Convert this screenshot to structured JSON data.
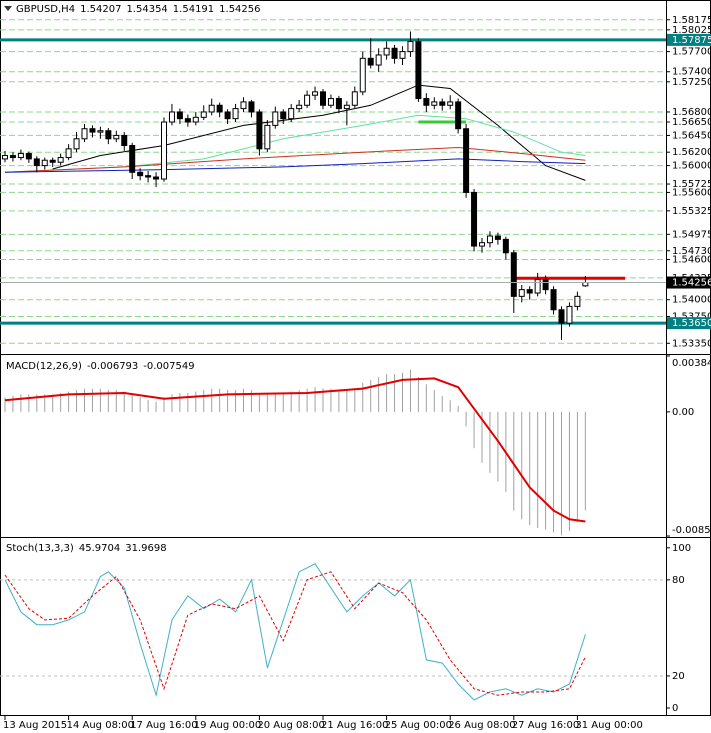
{
  "chart_data": [
    {
      "type": "candlestick",
      "title": "GBPUSD,H4",
      "categories": [
        "13 Aug 2015",
        null,
        null,
        null,
        null,
        null,
        null,
        null,
        "14 Aug 08:00",
        null,
        null,
        null,
        null,
        null,
        null,
        null,
        "17 Aug 16:00",
        null,
        null,
        null,
        null,
        null,
        null,
        null,
        "19 Aug 00:00",
        null,
        null,
        null,
        null,
        null,
        null,
        null,
        "20 Aug 08:00",
        null,
        null,
        null,
        null,
        null,
        null,
        null,
        "21 Aug 16:00",
        null,
        null,
        null,
        null,
        null,
        null,
        null,
        "25 Aug 00:00",
        null,
        null,
        null,
        null,
        null,
        null,
        null,
        "26 Aug 08:00",
        null,
        null,
        null,
        null,
        null,
        null,
        null,
        "27 Aug 16:00",
        null,
        null,
        null,
        null,
        null,
        null,
        null,
        "31 Aug 00:00",
        null
      ],
      "ohlc": [
        [
          1.561,
          1.5622,
          1.5605,
          1.5615
        ],
        [
          1.5615,
          1.562,
          1.5606,
          1.5612
        ],
        [
          1.5612,
          1.5624,
          1.5608,
          1.5618
        ],
        [
          1.5618,
          1.5621,
          1.5604,
          1.561
        ],
        [
          1.561,
          1.5614,
          1.559,
          1.56
        ],
        [
          1.56,
          1.5612,
          1.5594,
          1.5608
        ],
        [
          1.5608,
          1.5612,
          1.5598,
          1.5605
        ],
        [
          1.5605,
          1.5618,
          1.56,
          1.5612
        ],
        [
          1.5612,
          1.5632,
          1.5608,
          1.5625
        ],
        [
          1.5625,
          1.565,
          1.562,
          1.564
        ],
        [
          1.564,
          1.5662,
          1.5635,
          1.5655
        ],
        [
          1.5655,
          1.566,
          1.5642,
          1.565
        ],
        [
          1.565,
          1.5658,
          1.564,
          1.5652
        ],
        [
          1.5652,
          1.5656,
          1.5632,
          1.564
        ],
        [
          1.564,
          1.5652,
          1.5635,
          1.5645
        ],
        [
          1.5645,
          1.565,
          1.5622,
          1.563
        ],
        [
          1.563,
          1.5634,
          1.558,
          1.559
        ],
        [
          1.559,
          1.5596,
          1.5578,
          1.5585
        ],
        [
          1.5585,
          1.5592,
          1.5575,
          1.5583
        ],
        [
          1.5583,
          1.559,
          1.5568,
          1.558
        ],
        [
          1.558,
          1.5672,
          1.5576,
          1.5665
        ],
        [
          1.5665,
          1.5692,
          1.566,
          1.568
        ],
        [
          1.568,
          1.5685,
          1.5662,
          1.567
        ],
        [
          1.567,
          1.5676,
          1.5658,
          1.5665
        ],
        [
          1.5665,
          1.568,
          1.566,
          1.5672
        ],
        [
          1.5672,
          1.569,
          1.5668,
          1.568
        ],
        [
          1.568,
          1.57,
          1.5675,
          1.569
        ],
        [
          1.569,
          1.5694,
          1.5672,
          1.568
        ],
        [
          1.568,
          1.5684,
          1.5662,
          1.567
        ],
        [
          1.567,
          1.5692,
          1.5665,
          1.5685
        ],
        [
          1.5685,
          1.5702,
          1.568,
          1.5695
        ],
        [
          1.5695,
          1.5698,
          1.5672,
          1.568
        ],
        [
          1.568,
          1.5684,
          1.5615,
          1.5625
        ],
        [
          1.5625,
          1.5668,
          1.562,
          1.566
        ],
        [
          1.566,
          1.5688,
          1.5655,
          1.568
        ],
        [
          1.568,
          1.5684,
          1.5662,
          1.567
        ],
        [
          1.567,
          1.5692,
          1.5665,
          1.5685
        ],
        [
          1.5685,
          1.5698,
          1.568,
          1.569
        ],
        [
          1.569,
          1.5712,
          1.5686,
          1.5705
        ],
        [
          1.5705,
          1.5718,
          1.5698,
          1.571
        ],
        [
          1.571,
          1.5714,
          1.5684,
          1.569
        ],
        [
          1.569,
          1.5706,
          1.5686,
          1.57
        ],
        [
          1.57,
          1.5704,
          1.5678,
          1.5685
        ],
        [
          1.5685,
          1.5696,
          1.566,
          1.569
        ],
        [
          1.569,
          1.5718,
          1.5686,
          1.571
        ],
        [
          1.571,
          1.577,
          1.5705,
          1.576
        ],
        [
          1.576,
          1.579,
          1.5745,
          1.575
        ],
        [
          1.575,
          1.5775,
          1.574,
          1.5765
        ],
        [
          1.5765,
          1.5785,
          1.5758,
          1.5775
        ],
        [
          1.5775,
          1.578,
          1.5752,
          1.576
        ],
        [
          1.576,
          1.5778,
          1.575,
          1.577
        ],
        [
          1.577,
          1.58,
          1.5762,
          1.5785
        ],
        [
          1.5785,
          1.579,
          1.5695,
          1.57
        ],
        [
          1.57,
          1.5708,
          1.568,
          1.569
        ],
        [
          1.569,
          1.5702,
          1.5684,
          1.5695
        ],
        [
          1.5695,
          1.57,
          1.5682,
          1.569
        ],
        [
          1.569,
          1.5705,
          1.5684,
          1.5695
        ],
        [
          1.5695,
          1.57,
          1.5648,
          1.5655
        ],
        [
          1.5655,
          1.5662,
          1.5552,
          1.556
        ],
        [
          1.556,
          1.5565,
          1.5472,
          1.548
        ],
        [
          1.548,
          1.5492,
          1.547,
          1.5485
        ],
        [
          1.5485,
          1.5502,
          1.5478,
          1.5495
        ],
        [
          1.5495,
          1.55,
          1.5482,
          1.549
        ],
        [
          1.549,
          1.5494,
          1.546,
          1.547
        ],
        [
          1.547,
          1.5474,
          1.538,
          1.5405
        ],
        [
          1.5405,
          1.5422,
          1.5396,
          1.5415
        ],
        [
          1.5415,
          1.542,
          1.54,
          1.541
        ],
        [
          1.541,
          1.544,
          1.5405,
          1.543
        ],
        [
          1.543,
          1.5436,
          1.5408,
          1.5415
        ],
        [
          1.5415,
          1.542,
          1.5378,
          1.5385
        ],
        [
          1.5385,
          1.539,
          1.534,
          1.5365
        ],
        [
          1.5365,
          1.5396,
          1.536,
          1.539
        ],
        [
          1.539,
          1.5412,
          1.5384,
          1.5405
        ],
        [
          1.54207,
          1.54354,
          1.54191,
          1.54256
        ]
      ],
      "ylim": [
        1.5322,
        1.5844
      ],
      "yticks": [
        1.58175,
        1.58025,
        {
          "value": 1.577,
          "label": "1.57700"
        },
        {
          "value": 1.574,
          "label": "1.57400"
        },
        {
          "value": 1.5725,
          "label": "1.57250"
        },
        {
          "value": 1.568,
          "label": "1.56800"
        },
        {
          "value": 1.5665,
          "label": "1.56650"
        },
        {
          "value": 1.5645,
          "label": "1.56450"
        },
        {
          "value": 1.562,
          "label": "1.56200"
        },
        {
          "value": 1.56,
          "label": "1.56000"
        },
        1.55725,
        {
          "value": 1.556,
          "label": "1.55600"
        },
        1.55325,
        1.54975,
        {
          "value": 1.5473,
          "label": "1.54730"
        },
        {
          "value": 1.546,
          "label": "1.54600"
        },
        1.54325,
        {
          "value": 1.54,
          "label": "1.54000"
        },
        {
          "value": 1.5375,
          "label": "1.53750"
        },
        {
          "value": 1.5335,
          "label": "1.53350"
        }
      ],
      "grid": true,
      "grid_color": "#8fd68f",
      "bull_color": "#ffffff",
      "bear_color": "#000000",
      "series": [
        {
          "color": "#000000",
          "x": [
            6,
            12,
            20,
            30,
            40,
            46,
            52,
            56,
            62,
            68,
            73
          ],
          "values": [
            1.5595,
            1.5615,
            1.563,
            1.566,
            1.5675,
            1.569,
            1.572,
            1.5715,
            1.566,
            1.56,
            1.5578
          ]
        },
        {
          "color": "#5fe0a0",
          "x": [
            0,
            15,
            25,
            35,
            45,
            52,
            58,
            64,
            70,
            73
          ],
          "values": [
            1.559,
            1.5598,
            1.561,
            1.564,
            1.566,
            1.5675,
            1.567,
            1.565,
            1.562,
            1.5615
          ]
        },
        {
          "color": "#d03020",
          "x": [
            0,
            15,
            30,
            45,
            57,
            65,
            73
          ],
          "values": [
            1.559,
            1.5598,
            1.561,
            1.562,
            1.5627,
            1.5618,
            1.5608
          ]
        },
        {
          "color": "#1020c0",
          "x": [
            0,
            20,
            35,
            45,
            57,
            65,
            73
          ],
          "values": [
            1.559,
            1.5594,
            1.5598,
            1.5603,
            1.561,
            1.5606,
            1.5603
          ]
        }
      ],
      "levels": [
        {
          "value": 1.57875,
          "color": "#008080",
          "width": 3
        },
        {
          "value": 1.5365,
          "label": "1.53650",
          "color": "#008080",
          "width": 3
        },
        {
          "value": 1.5665,
          "color": "#33cc33",
          "width": 3,
          "from": 52,
          "to": 58
        },
        {
          "value": 1.5432,
          "color": "#e00000",
          "width": 3,
          "from": 64,
          "to": 78
        }
      ]
    },
    {
      "type": "macd",
      "title": "MACD(12,26,9)",
      "values": [
        0.001,
        0.0011,
        0.0012,
        0.0012,
        0.0012,
        0.0012,
        0.0012,
        0.0013,
        0.0014,
        0.0015,
        0.0016,
        0.0016,
        0.0016,
        0.0015,
        0.0015,
        0.0014,
        0.0012,
        0.001,
        0.0008,
        0.0007,
        0.001,
        0.0012,
        0.0013,
        0.0013,
        0.0014,
        0.0015,
        0.0016,
        0.0016,
        0.0015,
        0.0015,
        0.0016,
        0.0015,
        0.0012,
        0.0012,
        0.0013,
        0.0013,
        0.0014,
        0.0015,
        0.0016,
        0.0017,
        0.0016,
        0.0016,
        0.0015,
        0.0015,
        0.0016,
        0.002,
        0.0022,
        0.0024,
        0.0026,
        0.0026,
        0.0027,
        0.0029,
        0.0024,
        0.0019,
        0.0015,
        0.0011,
        0.0008,
        0.0004,
        -0.001,
        -0.0025,
        -0.0035,
        -0.0042,
        -0.0048,
        -0.0055,
        -0.0068,
        -0.0074,
        -0.0078,
        -0.008,
        -0.0081,
        -0.0083,
        -0.0085,
        -0.0082,
        -0.0076,
        -0.006793
      ],
      "color": "#a0a0a0",
      "series": [
        {
          "color": "#e00000",
          "x": [
            0,
            8,
            15,
            20,
            28,
            38,
            45,
            50,
            54,
            57,
            62,
            66,
            69,
            71,
            73
          ],
          "values": [
            0.0008,
            0.0012,
            0.0013,
            0.0009,
            0.0012,
            0.0013,
            0.0016,
            0.0022,
            0.0023,
            0.0017,
            -0.002,
            -0.0052,
            -0.0068,
            -0.0074,
            -0.007549
          ]
        }
      ],
      "ylim": [
        -0.008547,
        0.003845
      ],
      "yticks": [
        0.003845,
        {
          "value": 0,
          "label": "0.00"
        },
        -0.008547
      ]
    },
    {
      "type": "stoch",
      "title": "Stoch(13,3,3)",
      "series": [
        {
          "color": "#40b0c8",
          "x": [
            0,
            2,
            4,
            6,
            8,
            10,
            12,
            13,
            15,
            17,
            19,
            21,
            23,
            25,
            27,
            29,
            31,
            33,
            35,
            37,
            39,
            41,
            43,
            45,
            47,
            49,
            51,
            53,
            55,
            57,
            59,
            61,
            63,
            65,
            67,
            69,
            71,
            73
          ],
          "values": [
            80,
            60,
            52,
            52,
            55,
            60,
            82,
            85,
            75,
            40,
            8,
            55,
            70,
            62,
            68,
            60,
            80,
            25,
            55,
            85,
            90,
            75,
            60,
            70,
            78,
            70,
            80,
            30,
            28,
            15,
            5,
            10,
            12,
            8,
            12,
            10,
            15,
            45.9704
          ]
        },
        {
          "color": "#e00000",
          "dashed": true,
          "x": [
            0,
            3,
            5,
            8,
            11,
            14,
            17,
            20,
            23,
            26,
            29,
            32,
            35,
            38,
            41,
            44,
            47,
            50,
            53,
            56,
            59,
            62,
            65,
            68,
            71,
            73
          ],
          "values": [
            83,
            62,
            55,
            56,
            70,
            82,
            55,
            12,
            58,
            65,
            62,
            70,
            42,
            80,
            85,
            62,
            78,
            72,
            55,
            30,
            12,
            8,
            10,
            10,
            12,
            31.9698
          ]
        }
      ],
      "ylim": [
        -5,
        105.5
      ],
      "yticks": [
        100,
        80,
        20,
        0
      ],
      "levels": [
        80,
        20
      ]
    }
  ]
}
